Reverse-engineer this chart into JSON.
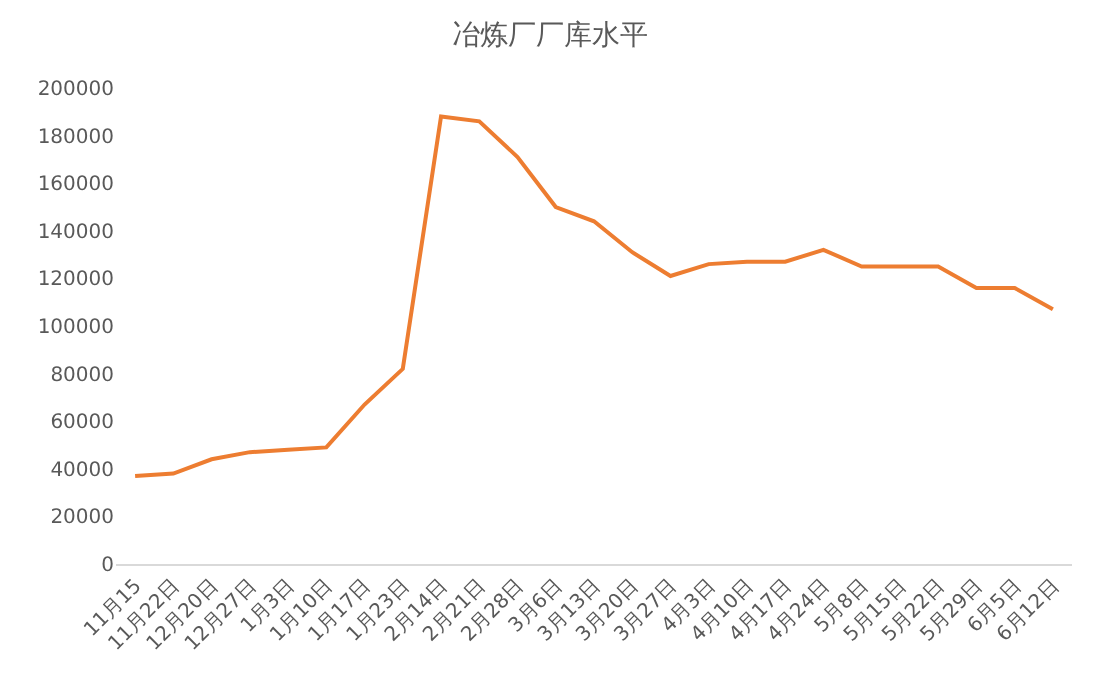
{
  "chart_data": {
    "type": "line",
    "title": "冶炼厂厂库水平",
    "categories": [
      "11月15",
      "11月22日",
      "12月20日",
      "12月27日",
      "1月3日",
      "1月10日",
      "1月17日",
      "1月23日",
      "2月14日",
      "2月21日",
      "2月28日",
      "3月6日",
      "3月13日",
      "3月20日",
      "3月27日",
      "4月3日",
      "4月10日",
      "4月17日",
      "4月24日",
      "5月8日",
      "5月15日",
      "5月22日",
      "5月29日",
      "6月5日",
      "6月12日"
    ],
    "series": [
      {
        "color": "#ed7d31",
        "values": [
          37000,
          38000,
          44000,
          47000,
          48000,
          49000,
          67000,
          82000,
          188000,
          186000,
          171000,
          150000,
          144000,
          131000,
          121000,
          126000,
          127000,
          127000,
          132000,
          125000,
          125000,
          125000,
          116000,
          116000,
          107000
        ]
      }
    ],
    "ylim": [
      0,
      200000
    ],
    "yticks": [
      0,
      20000,
      40000,
      60000,
      80000,
      100000,
      120000,
      140000,
      160000,
      180000,
      200000
    ],
    "grid": false,
    "marker": "none",
    "line_style": "solid"
  }
}
